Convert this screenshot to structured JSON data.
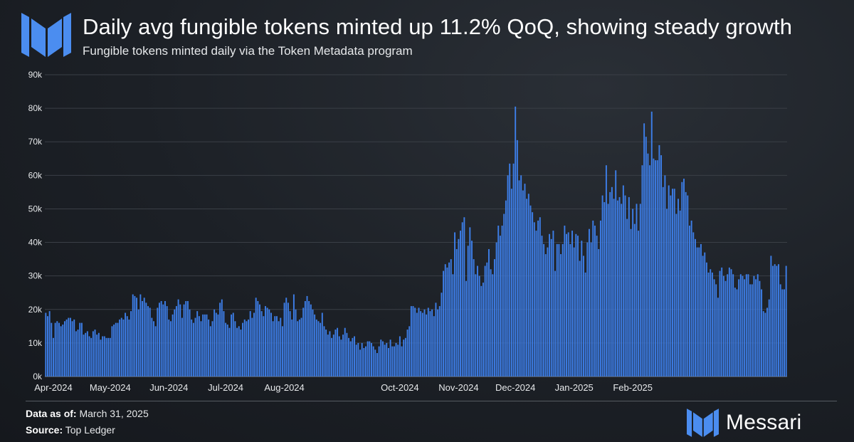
{
  "header": {
    "title": "Daily avg fungible tokens minted up 11.2% QoQ, showing steady growth",
    "subtitle": "Fungible tokens minted daily via the Token Metadata program"
  },
  "footer": {
    "data_as_of_label": "Data as of:",
    "data_as_of_value": "March 31, 2025",
    "source_label": "Source:",
    "source_value": "Top Ledger",
    "brand": "Messari"
  },
  "colors": {
    "bar": "#3d7ee8",
    "grid": "#3a3f46",
    "background": "#1c2026"
  },
  "chart_data": {
    "type": "bar",
    "title": "Daily avg fungible tokens minted up 11.2% QoQ, showing steady growth",
    "subtitle": "Fungible tokens minted daily via the Token Metadata program",
    "xlabel": "",
    "ylabel": "",
    "ylim": [
      0,
      90000
    ],
    "yticks": [
      0,
      10000,
      20000,
      30000,
      40000,
      50000,
      60000,
      70000,
      80000,
      90000
    ],
    "ytick_labels": [
      "0k",
      "10k",
      "20k",
      "30k",
      "40k",
      "50k",
      "60k",
      "70k",
      "80k",
      "90k"
    ],
    "xtick_labels": [
      "Apr-2024",
      "May-2024",
      "Jun-2024",
      "Jul-2024",
      "Aug-2024",
      "Oct-2024",
      "Nov-2024",
      "Dec-2024",
      "Jan-2025",
      "Feb-2025"
    ],
    "xtick_dates": [
      "2024-04-01",
      "2024-05-01",
      "2024-06-01",
      "2024-07-01",
      "2024-08-01",
      "2024-10-01",
      "2024-11-01",
      "2024-12-01",
      "2025-01-01",
      "2025-02-01"
    ],
    "grid": true,
    "legend": "none",
    "start_date": "2024-03-28",
    "frequency": "daily",
    "values": [
      19000,
      18000,
      19500,
      16000,
      11500,
      16000,
      16500,
      16000,
      15000,
      15500,
      16500,
      17000,
      17500,
      17500,
      16500,
      17000,
      13500,
      14000,
      16000,
      16000,
      12500,
      13000,
      13500,
      12000,
      11500,
      13500,
      14000,
      12500,
      13000,
      11000,
      12000,
      12000,
      11500,
      11500,
      11500,
      15000,
      15500,
      16000,
      16000,
      17000,
      17500,
      17000,
      19000,
      18000,
      17000,
      19500,
      24500,
      24000,
      23500,
      20000,
      24500,
      22500,
      23500,
      22000,
      21000,
      20500,
      17500,
      16500,
      15000,
      20500,
      22000,
      22500,
      21500,
      22500,
      21000,
      17000,
      16500,
      18500,
      20000,
      21000,
      23000,
      21500,
      17500,
      21500,
      22500,
      22500,
      20000,
      17000,
      16000,
      17500,
      19500,
      18000,
      16500,
      18500,
      18500,
      18500,
      17000,
      15000,
      16500,
      20000,
      19000,
      18500,
      22000,
      23000,
      19500,
      16000,
      15500,
      14500,
      18500,
      19000,
      16500,
      14500,
      15000,
      14000,
      16000,
      17000,
      16500,
      17000,
      19500,
      17500,
      19000,
      23500,
      22500,
      21500,
      19500,
      18000,
      21000,
      20500,
      20000,
      19000,
      16500,
      18000,
      18000,
      16500,
      17500,
      15000,
      22000,
      23500,
      22000,
      19500,
      17000,
      24500,
      20000,
      16500,
      17000,
      17500,
      20500,
      22500,
      24000,
      22500,
      21500,
      20000,
      18500,
      17000,
      16500,
      16000,
      19000,
      15000,
      14000,
      12500,
      13500,
      11500,
      12500,
      14000,
      14500,
      12000,
      11000,
      12500,
      14500,
      13000,
      11500,
      10500,
      11500,
      12000,
      9500,
      10000,
      8000,
      10000,
      8500,
      9000,
      10500,
      10500,
      10000,
      9000,
      8000,
      7000,
      9000,
      11000,
      10500,
      9500,
      10000,
      8500,
      11000,
      9000,
      9000,
      10000,
      9500,
      12000,
      9000,
      11000,
      11500,
      14000,
      15000,
      21000,
      21000,
      20500,
      19000,
      20500,
      19500,
      19000,
      20000,
      18500,
      20500,
      19500,
      20000,
      18000,
      22000,
      20000,
      21000,
      25000,
      31500,
      33500,
      32500,
      34000,
      35000,
      30500,
      43000,
      38000,
      41000,
      43500,
      46000,
      47500,
      28500,
      39000,
      44500,
      40500,
      35000,
      30500,
      33000,
      30000,
      27000,
      28000,
      33000,
      34000,
      38000,
      32000,
      30500,
      35000,
      40000,
      45000,
      42000,
      45000,
      48500,
      52500,
      60000,
      63500,
      56000,
      63500,
      80500,
      70500,
      58500,
      60000,
      55500,
      57500,
      53000,
      54500,
      51000,
      49000,
      46000,
      43500,
      46500,
      47500,
      42000,
      39500,
      36500,
      38500,
      42500,
      41000,
      43500,
      31500,
      39500,
      39500,
      36500,
      39500,
      45000,
      42500,
      43000,
      39500,
      43500,
      38500,
      42500,
      42000,
      34500,
      40500,
      36000,
      31000,
      40000,
      44000,
      40000,
      46500,
      45000,
      42000,
      38000,
      46500,
      54000,
      52000,
      63000,
      51500,
      55000,
      56500,
      53000,
      61500,
      52500,
      53500,
      51500,
      57000,
      54000,
      47000,
      53500,
      44000,
      50000,
      45500,
      51500,
      43500,
      51500,
      63000,
      75500,
      71500,
      66500,
      63000,
      79000,
      65000,
      64500,
      64500,
      69000,
      66000,
      56500,
      60000,
      50000,
      57000,
      54000,
      56000,
      56000,
      48500,
      53000,
      49500,
      58000,
      59000,
      55000,
      54000,
      45000,
      46500,
      43000,
      41000,
      38500,
      38500,
      39500,
      36000,
      37000,
      34000,
      31000,
      32000,
      31000,
      29000,
      27500,
      23500,
      31500,
      32500,
      30000,
      28500,
      30500,
      32500,
      32000,
      30500,
      26500,
      26000,
      29000,
      30500,
      30000,
      29000,
      30500,
      30500,
      27500,
      27500,
      30000,
      29000,
      30500,
      28500,
      26000,
      19500,
      19000,
      20500,
      23000,
      36000,
      33000,
      33500,
      33000,
      33500,
      27500,
      26000,
      26000,
      33000
    ]
  }
}
